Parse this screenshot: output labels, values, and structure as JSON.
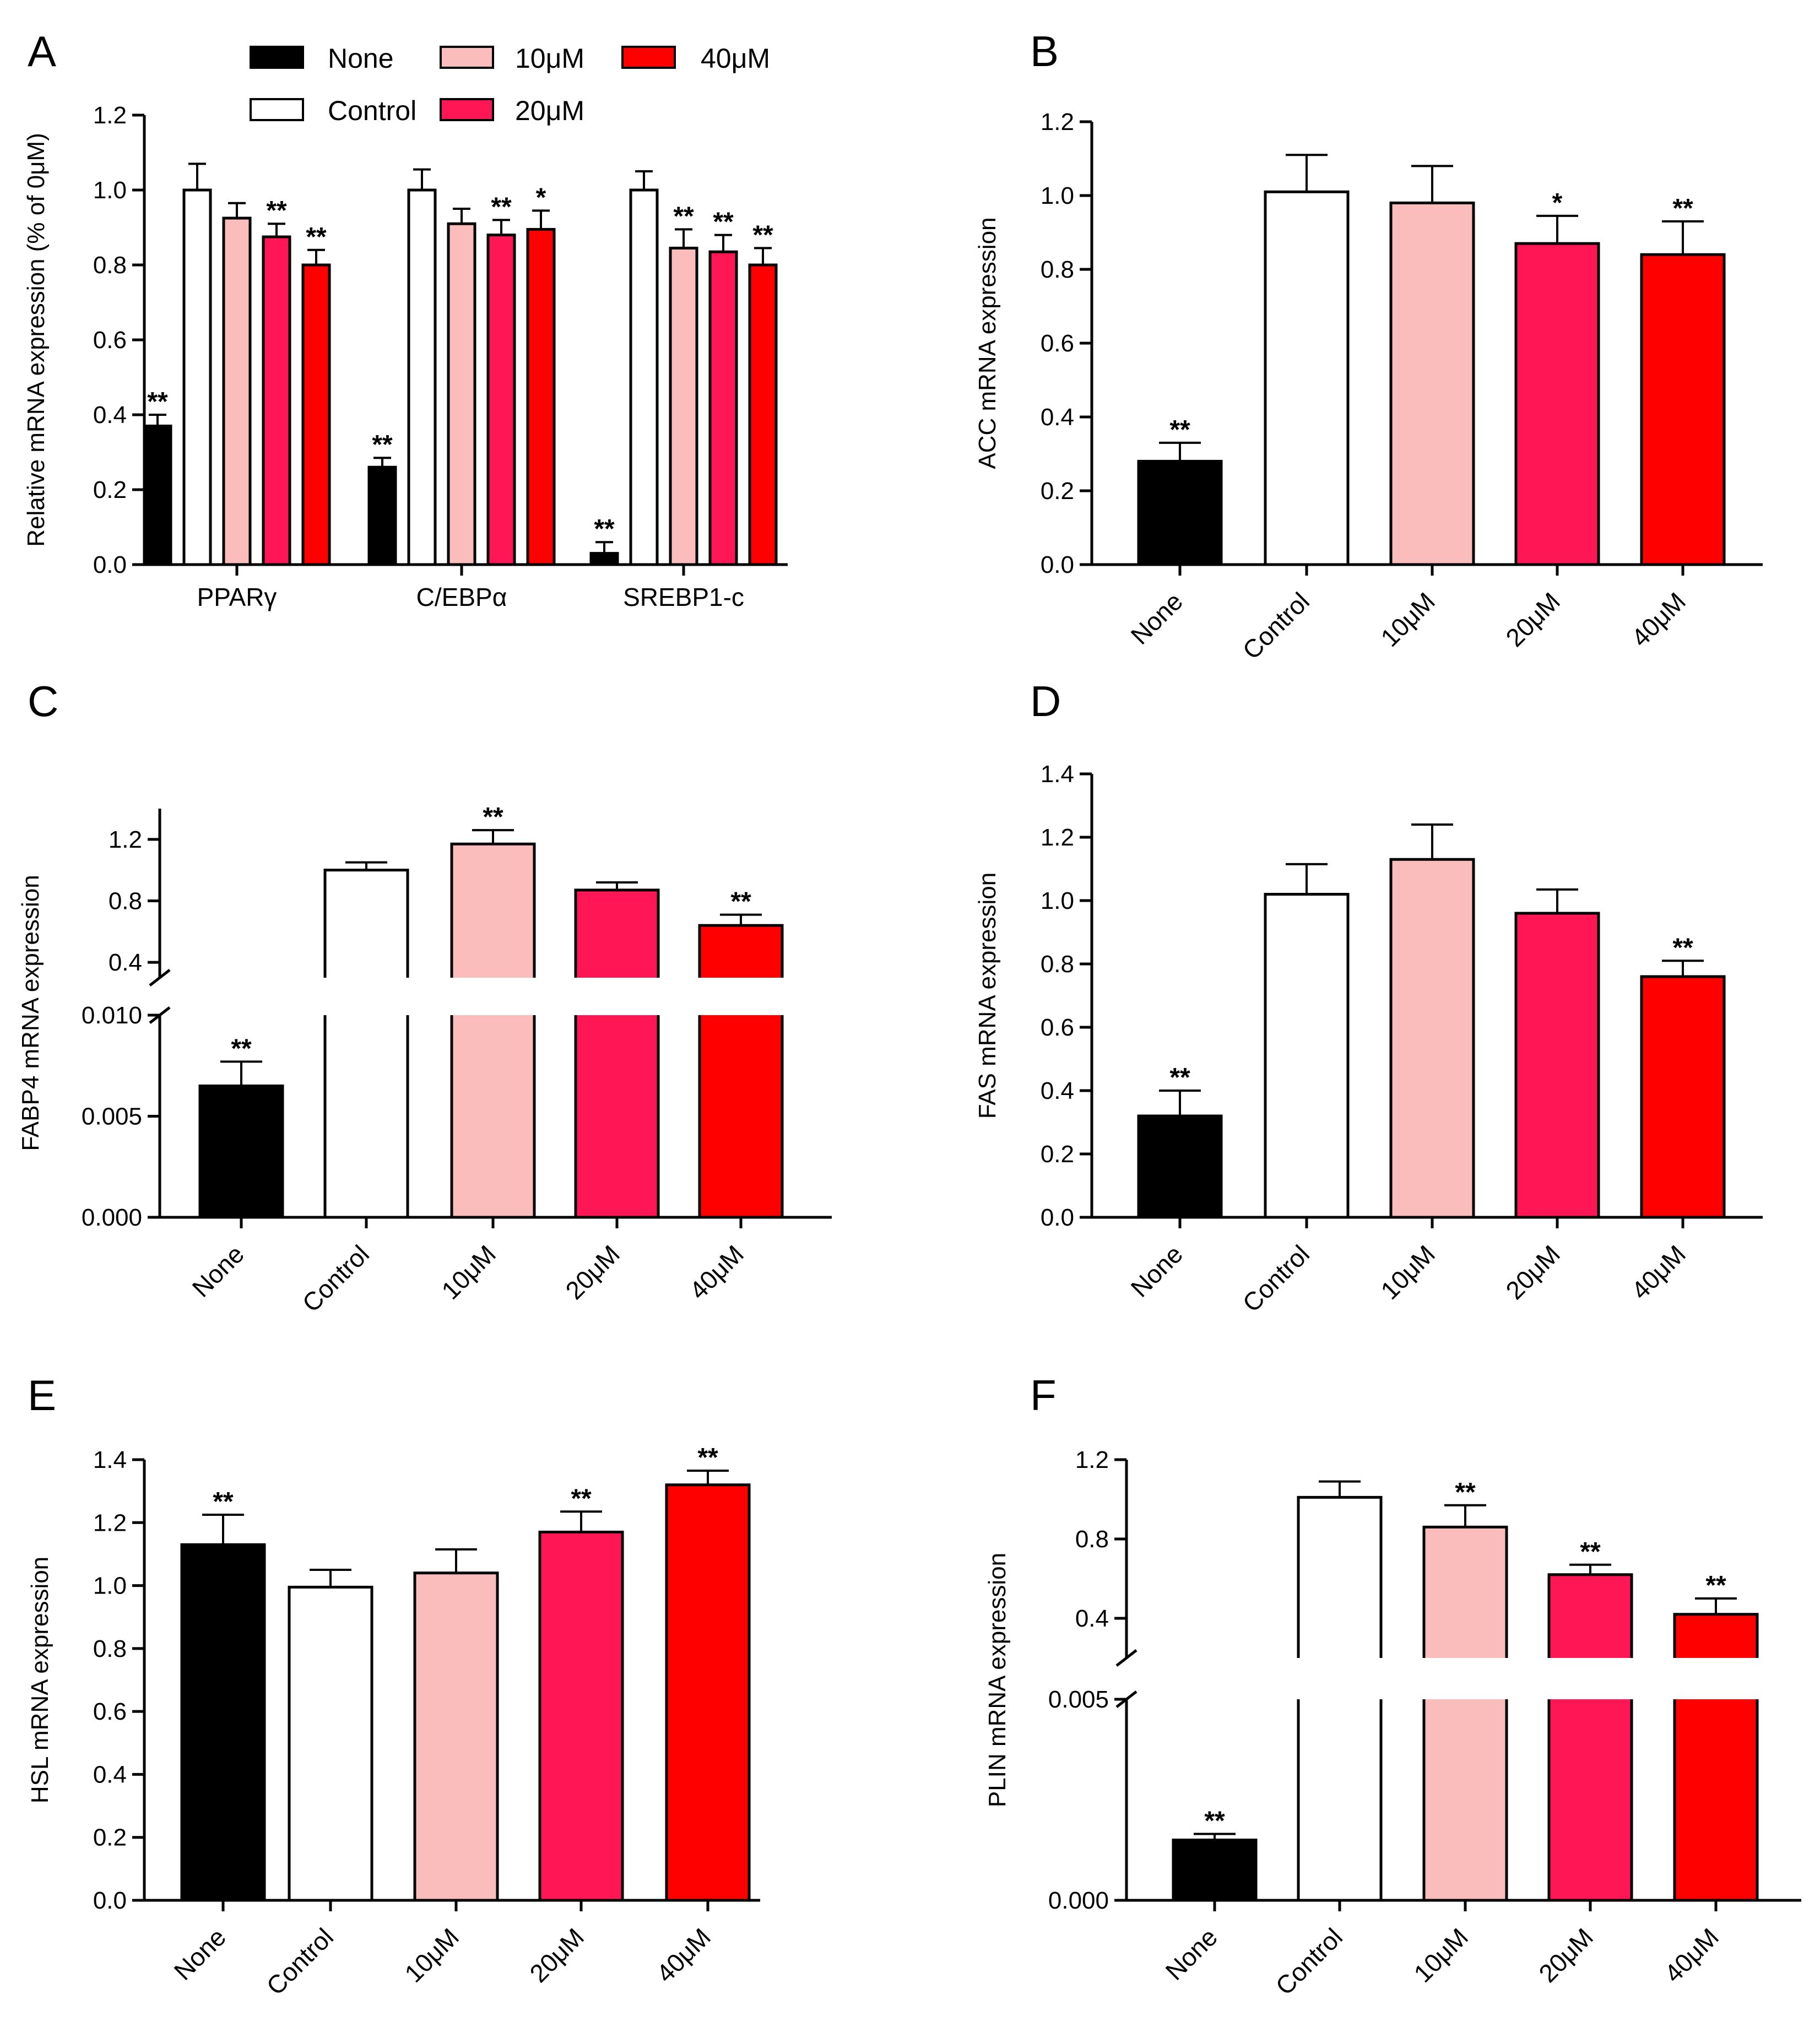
{
  "legend": {
    "items": [
      {
        "label": "None",
        "color": "#000000"
      },
      {
        "label": "10μM",
        "color": "#FBBCBC"
      },
      {
        "label": "40μM",
        "color": "#FF0000"
      },
      {
        "label": "Control",
        "color": "#FFFFFF"
      },
      {
        "label": "20μM",
        "color": "#FF1654"
      }
    ]
  },
  "chart_data": [
    {
      "panel": "A",
      "type": "bar",
      "ylabel": "Relative mRNA expression (% of 0μM)",
      "ylim": [
        0,
        1.2
      ],
      "yticks": [
        "0.0",
        "0.2",
        "0.4",
        "0.6",
        "0.8",
        "1.0",
        "1.2"
      ],
      "categories": [
        "PPARγ",
        "C/EBPα",
        "SREBP1-c"
      ],
      "series": [
        {
          "name": "None",
          "color": "#000000",
          "values": [
            0.37,
            0.26,
            0.03
          ],
          "errors": [
            0.03,
            0.025,
            0.03
          ],
          "sig": [
            "**",
            "**",
            "**"
          ]
        },
        {
          "name": "Control",
          "color": "#FFFFFF",
          "values": [
            1.0,
            1.0,
            1.0
          ],
          "errors": [
            0.07,
            0.055,
            0.05
          ],
          "sig": [
            "",
            "",
            ""
          ]
        },
        {
          "name": "10μM",
          "color": "#FBBCBC",
          "values": [
            0.925,
            0.91,
            0.845
          ],
          "errors": [
            0.04,
            0.04,
            0.05
          ],
          "sig": [
            "",
            "",
            "**"
          ]
        },
        {
          "name": "20μM",
          "color": "#FF1654",
          "values": [
            0.875,
            0.88,
            0.835
          ],
          "errors": [
            0.035,
            0.04,
            0.045
          ],
          "sig": [
            "**",
            "**",
            "**"
          ]
        },
        {
          "name": "40μM",
          "color": "#FF0000",
          "values": [
            0.8,
            0.895,
            0.8
          ],
          "errors": [
            0.04,
            0.05,
            0.045
          ],
          "sig": [
            "**",
            "*",
            "**"
          ]
        }
      ]
    },
    {
      "panel": "B",
      "type": "bar",
      "ylabel": "ACC  mRNA expression",
      "ylim": [
        0,
        1.2
      ],
      "yticks": [
        "0.0",
        "0.2",
        "0.4",
        "0.6",
        "0.8",
        "1.0",
        "1.2"
      ],
      "categories": [
        "None",
        "Control",
        "10μM",
        "20μM",
        "40μM"
      ],
      "colors": [
        "#000000",
        "#FFFFFF",
        "#FBBCBC",
        "#FF1654",
        "#FF0000"
      ],
      "values": [
        0.28,
        1.01,
        0.98,
        0.87,
        0.84
      ],
      "errors": [
        0.05,
        0.1,
        0.1,
        0.075,
        0.09
      ],
      "sig": [
        "**",
        "",
        "",
        "*",
        "**"
      ]
    },
    {
      "panel": "C",
      "type": "bar",
      "broken_axis": true,
      "ylabel": "FABP4  mRNA expression",
      "lower_ylim": [
        0,
        0.01
      ],
      "lower_yticks": [
        "0.000",
        "0.005",
        "0.010"
      ],
      "upper_ylim": [
        0.3,
        1.4
      ],
      "upper_yticks": [
        "0.4",
        "0.8",
        "1.2"
      ],
      "categories": [
        "None",
        "Control",
        "10μM",
        "20μM",
        "40μM"
      ],
      "colors": [
        "#000000",
        "#FFFFFF",
        "#FBBCBC",
        "#FF1654",
        "#FF0000"
      ],
      "values": [
        0.0065,
        1.0,
        1.17,
        0.87,
        0.64
      ],
      "errors": [
        0.0012,
        0.05,
        0.09,
        0.05,
        0.07
      ],
      "sig": [
        "**",
        "",
        "**",
        "",
        "**"
      ]
    },
    {
      "panel": "D",
      "type": "bar",
      "ylabel": "FAS  mRNA expression",
      "ylim": [
        0,
        1.4
      ],
      "yticks": [
        "0.0",
        "0.2",
        "0.4",
        "0.6",
        "0.8",
        "1.0",
        "1.2",
        "1.4"
      ],
      "categories": [
        "None",
        "Control",
        "10μM",
        "20μM",
        "40μM"
      ],
      "colors": [
        "#000000",
        "#FFFFFF",
        "#FBBCBC",
        "#FF1654",
        "#FF0000"
      ],
      "values": [
        0.32,
        1.02,
        1.13,
        0.96,
        0.76
      ],
      "errors": [
        0.08,
        0.095,
        0.11,
        0.075,
        0.05
      ],
      "sig": [
        "**",
        "",
        "",
        "",
        "**"
      ]
    },
    {
      "panel": "E",
      "type": "bar",
      "ylabel": "HSL  mRNA expression",
      "ylim": [
        0,
        1.4
      ],
      "yticks": [
        "0.0",
        "0.2",
        "0.4",
        "0.6",
        "0.8",
        "1.0",
        "1.2",
        "1.4"
      ],
      "categories": [
        "None",
        "Control",
        "10μM",
        "20μM",
        "40μM"
      ],
      "colors": [
        "#000000",
        "#FFFFFF",
        "#FBBCBC",
        "#FF1654",
        "#FF0000"
      ],
      "values": [
        1.13,
        0.995,
        1.04,
        1.17,
        1.32
      ],
      "errors": [
        0.095,
        0.055,
        0.075,
        0.065,
        0.045
      ],
      "sig": [
        "**",
        "",
        "",
        "**",
        "**"
      ]
    },
    {
      "panel": "F",
      "type": "bar",
      "broken_axis": true,
      "ylabel": "PLIN  mRNA expression",
      "lower_ylim": [
        0,
        0.005
      ],
      "lower_yticks": [
        "0.000",
        "0.005"
      ],
      "upper_ylim": [
        0.2,
        1.2
      ],
      "upper_yticks": [
        "0.4",
        "0.8",
        "1.2"
      ],
      "categories": [
        "None",
        "Control",
        "10μM",
        "20μM",
        "40μM"
      ],
      "colors": [
        "#000000",
        "#FFFFFF",
        "#FBBCBC",
        "#FF1654",
        "#FF0000"
      ],
      "values": [
        0.0015,
        1.01,
        0.86,
        0.62,
        0.42
      ],
      "errors": [
        0.00015,
        0.08,
        0.11,
        0.05,
        0.08
      ],
      "sig": [
        "**",
        "",
        "**",
        "**",
        "**"
      ]
    }
  ]
}
